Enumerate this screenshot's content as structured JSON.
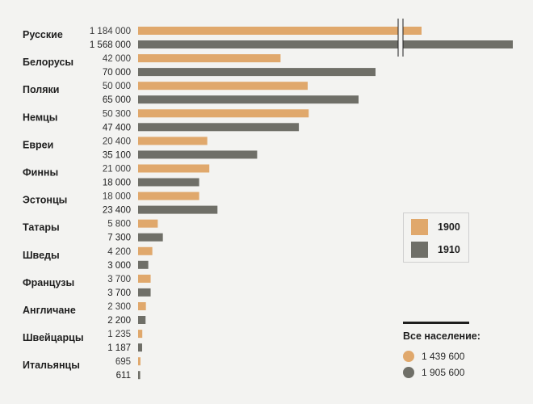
{
  "chart_data": {
    "type": "bar",
    "orientation": "horizontal",
    "categories": [
      "Русские",
      "Белорусы",
      "Поляки",
      "Немцы",
      "Евреи",
      "Финны",
      "Эстонцы",
      "Татары",
      "Шведы",
      "Французы",
      "Англичане",
      "Швейцарцы",
      "Итальянцы"
    ],
    "series": [
      {
        "name": "1900",
        "color": "#e0a86c",
        "values": [
          1184000,
          42000,
          50000,
          50300,
          20400,
          21000,
          18000,
          5800,
          4200,
          3700,
          2300,
          1235,
          695
        ],
        "labels": [
          "1 184 000",
          "42 000",
          "50 000",
          "50 300",
          "20 400",
          "21 000",
          "18 000",
          "5 800",
          "4 200",
          "3 700",
          "2 300",
          "1 235",
          "695"
        ]
      },
      {
        "name": "1910",
        "color": "#6f6f68",
        "values": [
          1568000,
          70000,
          65000,
          47400,
          35100,
          18000,
          23400,
          7300,
          3000,
          3700,
          2200,
          1187,
          611
        ],
        "labels": [
          "1 568 000",
          "70 000",
          "65 000",
          "47 400",
          "35 100",
          "18 000",
          "23 400",
          "7 300",
          "3 000",
          "3 700",
          "2 200",
          "1 187",
          "611"
        ]
      }
    ],
    "axis_break": true,
    "legend": {
      "items": [
        "1900",
        "1910"
      ],
      "position": "right"
    },
    "totals": {
      "title": "Все население:",
      "items": [
        {
          "series": "1900",
          "value": "1 439 600"
        },
        {
          "series": "1910",
          "value": "1 905 600"
        }
      ]
    }
  }
}
